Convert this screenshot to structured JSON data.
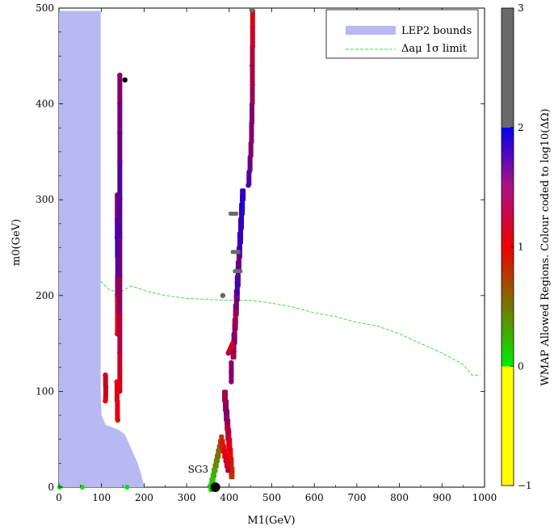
{
  "chart_data": {
    "type": "scatter",
    "xlabel": "M1(GeV)",
    "ylabel": "m0(GeV)",
    "xlim": [
      0,
      1000
    ],
    "ylim": [
      0,
      500
    ],
    "x_ticks": [
      0,
      100,
      200,
      300,
      400,
      500,
      600,
      700,
      800,
      900,
      1000
    ],
    "y_ticks": [
      0,
      100,
      200,
      300,
      400,
      500
    ],
    "grid": false,
    "legend_position": "top-right",
    "legend": [
      {
        "label": "LEP2 bounds",
        "color": "#b8b8f2",
        "style": "filled band"
      },
      {
        "label": "Δaμ 1σ limit",
        "color": "#44dd44",
        "style": "dashed line"
      }
    ],
    "colorbar": {
      "label": "WMAP Allowed Regions. Colour coded to log10(ΔΩ)",
      "range": [
        -1,
        3
      ],
      "ticks": [
        "−1",
        "0",
        "1",
        "2",
        "3"
      ],
      "bands": [
        {
          "from": -1,
          "to": 0,
          "color": "#ffff00"
        },
        {
          "from": 0,
          "to": 1,
          "colors": [
            "#00ee00",
            "#ee0000"
          ]
        },
        {
          "from": 1,
          "to": 2,
          "colors": [
            "#ee0000",
            "#0000ee"
          ]
        },
        {
          "from": 2,
          "to": 3,
          "color": "#6a6a6a"
        }
      ]
    },
    "lep2_region": [
      [
        0,
        497
      ],
      [
        98,
        497
      ],
      [
        98,
        100
      ],
      [
        100,
        75
      ],
      [
        110,
        65
      ],
      [
        140,
        60
      ],
      [
        155,
        55
      ],
      [
        165,
        45
      ],
      [
        175,
        35
      ],
      [
        185,
        25
      ],
      [
        192,
        15
      ],
      [
        198,
        5
      ],
      [
        200,
        0
      ],
      [
        0,
        0
      ]
    ],
    "delta_a_mu_limit": [
      [
        98,
        215
      ],
      [
        120,
        205
      ],
      [
        150,
        205
      ],
      [
        170,
        210
      ],
      [
        190,
        207
      ],
      [
        210,
        204
      ],
      [
        250,
        200
      ],
      [
        300,
        197
      ],
      [
        350,
        196
      ],
      [
        400,
        195
      ],
      [
        450,
        195
      ],
      [
        500,
        192
      ],
      [
        550,
        188
      ],
      [
        600,
        182
      ],
      [
        650,
        178
      ],
      [
        700,
        172
      ],
      [
        750,
        168
      ],
      [
        800,
        160
      ],
      [
        850,
        150
      ],
      [
        900,
        140
      ],
      [
        950,
        128
      ],
      [
        970,
        117
      ],
      [
        990,
        117
      ]
    ],
    "series": [
      {
        "x": [
          137,
          137,
          137,
          138,
          138,
          137,
          138,
          137
        ],
        "y": [
          305,
          280,
          260,
          240,
          220,
          200,
          180,
          160
        ],
        "log_dOmega": [
          1.4,
          1.5,
          1.9,
          1.7,
          1.6,
          1.2,
          1.1,
          1.0
        ]
      },
      {
        "x": [
          143,
          143,
          143,
          143,
          143,
          143,
          143,
          143,
          143,
          143
        ],
        "y": [
          430,
          400,
          370,
          340,
          300,
          260,
          220,
          180,
          140,
          100
        ],
        "log_dOmega": [
          1.4,
          1.5,
          1.5,
          1.6,
          1.7,
          1.6,
          1.5,
          1.3,
          1.2,
          1.1
        ]
      },
      {
        "x": [
          109,
          110,
          110,
          109
        ],
        "y": [
          117,
          105,
          95,
          90
        ],
        "log_dOmega": [
          1.1,
          1.2,
          1.1,
          1.0
        ]
      },
      {
        "x": [
          136,
          137,
          138
        ],
        "y": [
          110,
          90,
          70
        ],
        "log_dOmega": [
          1.0,
          1.1,
          1.0
        ]
      },
      {
        "x": [
          155
        ],
        "y": [
          425
        ],
        "log_dOmega": [
          3.0
        ]
      },
      {
        "x": [
          455,
          455,
          455,
          454,
          455,
          454,
          453,
          452,
          450,
          448,
          445
        ],
        "y": [
          497,
          480,
          460,
          440,
          420,
          400,
          380,
          360,
          345,
          330,
          315
        ],
        "log_dOmega": [
          1.1,
          1.1,
          1.2,
          1.3,
          1.3,
          1.4,
          1.5,
          1.4,
          1.5,
          1.6,
          1.7
        ]
      },
      {
        "x": [
          432,
          430,
          428,
          426,
          424,
          422,
          420,
          418,
          416,
          414,
          412,
          410
        ],
        "y": [
          305,
          290,
          275,
          260,
          245,
          230,
          215,
          200,
          185,
          170,
          155,
          140
        ],
        "log_dOmega": [
          1.8,
          1.9,
          1.7,
          1.9,
          1.6,
          1.5,
          1.8,
          1.6,
          1.4,
          1.2,
          1.6,
          1.3
        ],
        "pattern": "ribbon"
      },
      {
        "x": [
          408,
          406,
          404,
          402,
          400,
          398
        ],
        "y": [
          150,
          148,
          146,
          144,
          142,
          140
        ],
        "log_dOmega": [
          1.2,
          1.1,
          1.1,
          1.0,
          1.2,
          1.3
        ]
      },
      {
        "x": [
          405,
          405,
          405
        ],
        "y": [
          130,
          120,
          110
        ],
        "log_dOmega": [
          1.4,
          1.5,
          1.4
        ]
      },
      {
        "x": [
          390,
          392,
          394,
          396,
          398,
          400,
          402,
          404,
          406
        ],
        "y": [
          95,
          85,
          75,
          65,
          55,
          45,
          35,
          25,
          15
        ],
        "log_dOmega": [
          1.3,
          1.4,
          1.5,
          1.3,
          1.2,
          1.1,
          1.0,
          0.9,
          0.8
        ],
        "pattern": "ribbon"
      },
      {
        "x": [
          357,
          362,
          367,
          372,
          377,
          382,
          387,
          392,
          397
        ],
        "y": [
          0,
          10,
          20,
          30,
          40,
          50,
          40,
          30,
          20
        ],
        "log_dOmega": [
          0.1,
          0.2,
          0.35,
          0.5,
          0.6,
          0.8,
          1.0,
          1.1,
          1.2
        ],
        "pattern": "triangle"
      },
      {
        "x": [
          410,
          415,
          420
        ],
        "y": [
          285,
          245,
          225
        ],
        "log_dOmega": [
          2.8,
          2.8,
          2.8
        ],
        "pattern": "grey-bars"
      },
      {
        "x": [
          385
        ],
        "y": [
          200
        ],
        "log_dOmega": [
          2.8
        ]
      },
      {
        "x": [
          453
        ],
        "y": [
          498
        ],
        "log_dOmega": [
          2.6
        ]
      },
      {
        "x": [
          2,
          55,
          160
        ],
        "y": [
          0,
          0,
          0
        ],
        "log_dOmega": [
          0.05,
          0.05,
          0.05
        ],
        "pattern": "green-dots"
      }
    ],
    "annotations": [
      {
        "text": "SG3",
        "x": 375,
        "y": 0,
        "marker": "large-black-dot"
      }
    ]
  }
}
